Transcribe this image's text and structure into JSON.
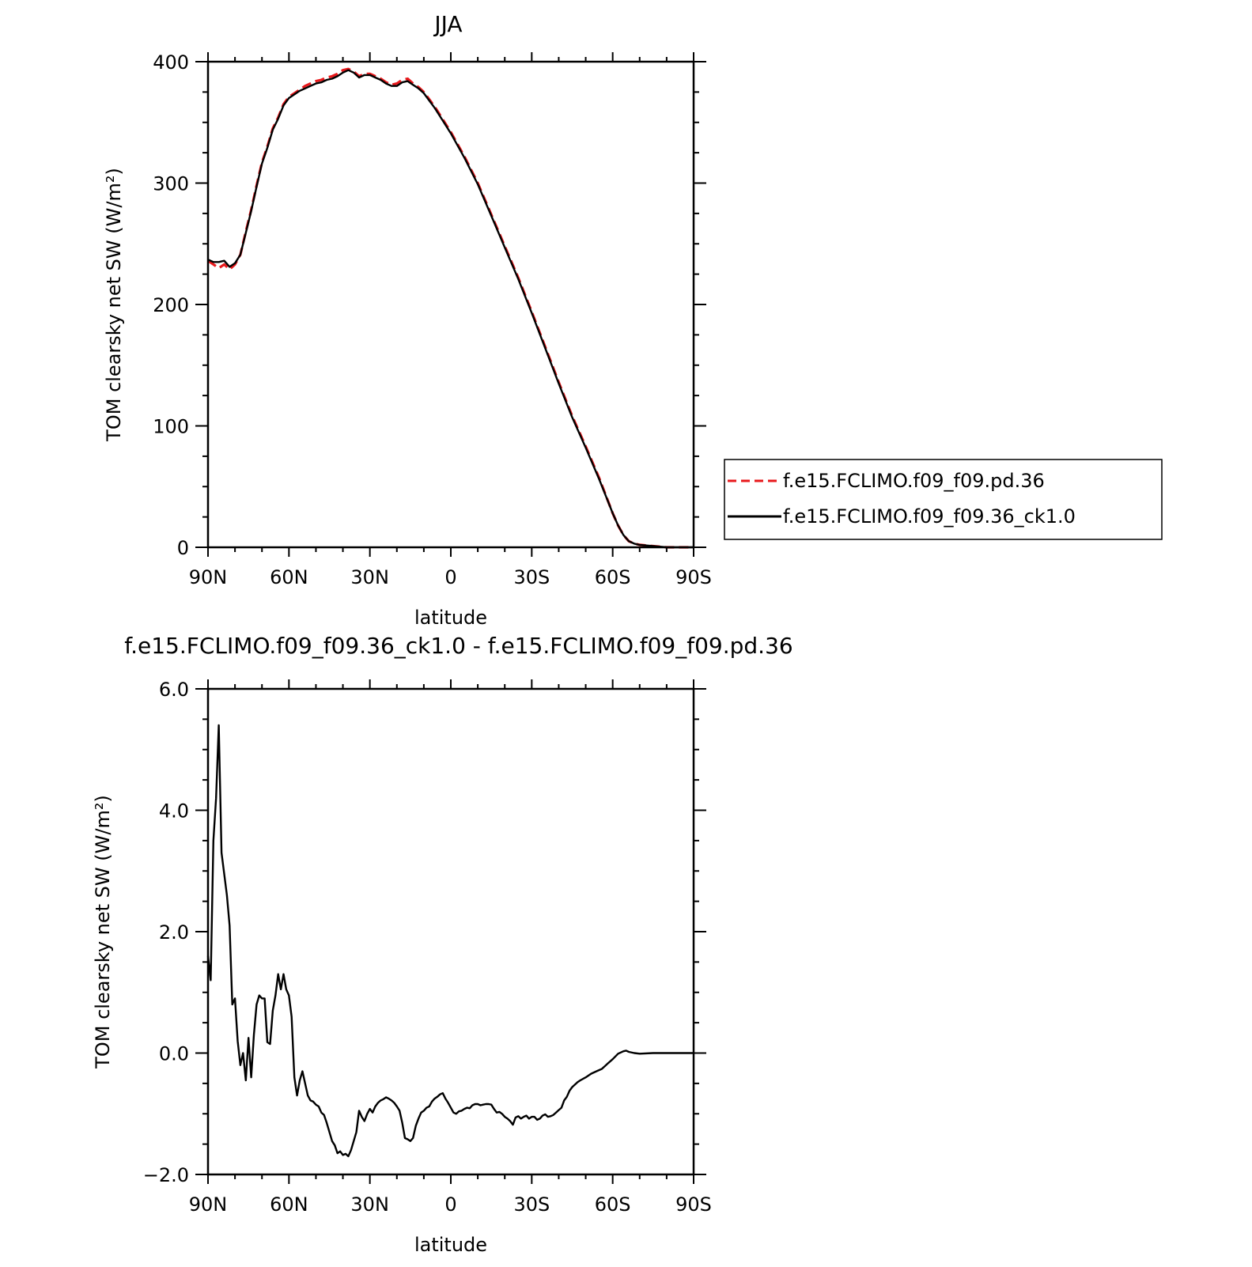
{
  "colors": {
    "series_red": "#e8191c",
    "series_black": "#000000",
    "axis": "#000000",
    "background": "#ffffff"
  },
  "legend": {
    "placement": "right",
    "entries": [
      {
        "label": "f.e15.FCLIMO.f09_f09.pd.36",
        "style": "dashed",
        "color": "#e8191c"
      },
      {
        "label": "f.e15.FCLIMO.f09_f09.36_ck1.0",
        "style": "solid",
        "color": "#000000"
      }
    ]
  },
  "chart_data": [
    {
      "type": "line",
      "title": "JJA",
      "xlabel": "latitude",
      "ylabel": "TOM clearsky net SW (W/m²)",
      "xlim": [
        90,
        -90
      ],
      "ylim": [
        0,
        400
      ],
      "xticks": [
        90,
        60,
        30,
        0,
        -30,
        -60,
        -90
      ],
      "xtick_labels": [
        "90N",
        "60N",
        "30N",
        "0",
        "30S",
        "60S",
        "90S"
      ],
      "yticks": [
        0,
        100,
        200,
        300,
        400
      ],
      "ytick_labels": [
        "0",
        "100",
        "200",
        "300",
        "400"
      ],
      "grid": false,
      "series": [
        {
          "name": "f.e15.FCLIMO.f09_f09.pd.36",
          "style": "dashed",
          "color": "#e8191c",
          "x": [
            90,
            88,
            86,
            84,
            82,
            80,
            78,
            76,
            74,
            72,
            70,
            68,
            66,
            64,
            62,
            60,
            58,
            56,
            54,
            52,
            50,
            48,
            46,
            44,
            42,
            40,
            38,
            36,
            34,
            32,
            30,
            28,
            26,
            24,
            22,
            20,
            18,
            16,
            14,
            12,
            10,
            8,
            6,
            4,
            2,
            0,
            -5,
            -10,
            -15,
            -20,
            -25,
            -30,
            -35,
            -40,
            -45,
            -50,
            -55,
            -60,
            -62,
            -64,
            -66,
            -68,
            -70,
            -75,
            -80,
            -85,
            -90
          ],
          "y": [
            236,
            233,
            230,
            233,
            229,
            233,
            241,
            260,
            278,
            298,
            317,
            330,
            345,
            354,
            365,
            371,
            374,
            377,
            380,
            382,
            384,
            385,
            387,
            388,
            390,
            393,
            394,
            392,
            388,
            390,
            390,
            388,
            386,
            383,
            381,
            382,
            385,
            386,
            382,
            379,
            375,
            369,
            363,
            356,
            349,
            342,
            322,
            300,
            274,
            248,
            222,
            194,
            165,
            136,
            108,
            83,
            57,
            28,
            18,
            10,
            5,
            3,
            2,
            1,
            0,
            0,
            0
          ]
        },
        {
          "name": "f.e15.FCLIMO.f09_f09.36_ck1.0",
          "style": "solid",
          "color": "#000000",
          "x": [
            90,
            88,
            86,
            84,
            82,
            80,
            78,
            76,
            74,
            72,
            70,
            68,
            66,
            64,
            62,
            60,
            58,
            56,
            54,
            52,
            50,
            48,
            46,
            44,
            42,
            40,
            38,
            36,
            34,
            32,
            30,
            28,
            26,
            24,
            22,
            20,
            18,
            16,
            14,
            12,
            10,
            8,
            6,
            4,
            2,
            0,
            -5,
            -10,
            -15,
            -20,
            -25,
            -30,
            -35,
            -40,
            -45,
            -50,
            -55,
            -60,
            -62,
            -64,
            -66,
            -68,
            -70,
            -75,
            -80,
            -85,
            -90
          ],
          "y": [
            237,
            235,
            235,
            236,
            231,
            234,
            241,
            259,
            277,
            297,
            316,
            329,
            344,
            353,
            364,
            370,
            373,
            376,
            378,
            380,
            382,
            383,
            385,
            386,
            388,
            391,
            393,
            391,
            387,
            389,
            389,
            387,
            385,
            382,
            380,
            380,
            383,
            384,
            381,
            378,
            374,
            368,
            362,
            355,
            348,
            341,
            321,
            299,
            273,
            247,
            221,
            193,
            164,
            135,
            107,
            82,
            56,
            28,
            18,
            10,
            5,
            3,
            2,
            1,
            0,
            0,
            0
          ]
        }
      ]
    },
    {
      "type": "line",
      "title": "f.e15.FCLIMO.f09_f09.36_ck1.0 - f.e15.FCLIMO.f09_f09.pd.36",
      "xlabel": "latitude",
      "ylabel": "TOM clearsky net SW (W/m²)",
      "xlim": [
        90,
        -90
      ],
      "ylim": [
        -2.0,
        6.0
      ],
      "xticks": [
        90,
        60,
        30,
        0,
        -30,
        -60,
        -90
      ],
      "xtick_labels": [
        "90N",
        "60N",
        "30N",
        "0",
        "30S",
        "60S",
        "90S"
      ],
      "yticks": [
        -2.0,
        0.0,
        2.0,
        4.0,
        6.0
      ],
      "ytick_labels": [
        "−2.0",
        "0.0",
        "2.0",
        "4.0",
        "6.0"
      ],
      "grid": false,
      "series": [
        {
          "style": "solid",
          "color": "#000000",
          "x": [
            90,
            89,
            88,
            87,
            86,
            85,
            83,
            82,
            81,
            80,
            79,
            78,
            77,
            76,
            75,
            74,
            73,
            72,
            71,
            70,
            69,
            68,
            67,
            66,
            65,
            64,
            63,
            62,
            61,
            60,
            59,
            58,
            57,
            56,
            55,
            53,
            52,
            51,
            50,
            49,
            48,
            47,
            46,
            45,
            44,
            43,
            42,
            41,
            40,
            39,
            38,
            37,
            36,
            35,
            34,
            33,
            32,
            31,
            30,
            29,
            28,
            27,
            26,
            25,
            24,
            23,
            22,
            21,
            20,
            19,
            18,
            17,
            16,
            15,
            14,
            13,
            12,
            11,
            10,
            9,
            8,
            7,
            6,
            5,
            4,
            3,
            2,
            1,
            0,
            -1,
            -2,
            -3,
            -4,
            -5,
            -6,
            -7,
            -8,
            -9,
            -10,
            -11,
            -12,
            -13,
            -14,
            -15,
            -16,
            -17,
            -18,
            -19,
            -20,
            -21,
            -22,
            -23,
            -24,
            -25,
            -26,
            -27,
            -28,
            -29,
            -30,
            -31,
            -32,
            -33,
            -34,
            -35,
            -36,
            -37,
            -38,
            -39,
            -40,
            -41,
            -42,
            -43,
            -44,
            -45,
            -46,
            -47,
            -48,
            -50,
            -52,
            -54,
            -56,
            -58,
            -60,
            -62,
            -64,
            -65,
            -66,
            -68,
            -70,
            -75,
            -80,
            -85,
            -90
          ],
          "y": [
            1.6,
            1.2,
            3.5,
            4.2,
            5.4,
            3.3,
            2.6,
            2.1,
            0.8,
            0.9,
            0.2,
            -0.2,
            0.0,
            -0.45,
            0.25,
            -0.4,
            0.3,
            0.8,
            0.95,
            0.9,
            0.9,
            0.18,
            0.15,
            0.7,
            0.95,
            1.3,
            1.05,
            1.3,
            1.05,
            0.95,
            0.6,
            -0.4,
            -0.7,
            -0.45,
            -0.3,
            -0.7,
            -0.78,
            -0.8,
            -0.85,
            -0.88,
            -0.98,
            -1.02,
            -1.15,
            -1.3,
            -1.45,
            -1.52,
            -1.65,
            -1.62,
            -1.68,
            -1.66,
            -1.7,
            -1.6,
            -1.45,
            -1.3,
            -0.95,
            -1.05,
            -1.12,
            -1.0,
            -0.92,
            -0.98,
            -0.88,
            -0.82,
            -0.78,
            -0.76,
            -0.73,
            -0.75,
            -0.78,
            -0.82,
            -0.88,
            -0.95,
            -1.15,
            -1.4,
            -1.42,
            -1.45,
            -1.4,
            -1.2,
            -1.08,
            -0.98,
            -0.95,
            -0.9,
            -0.88,
            -0.8,
            -0.75,
            -0.72,
            -0.68,
            -0.66,
            -0.75,
            -0.82,
            -0.9,
            -0.98,
            -1.0,
            -0.96,
            -0.95,
            -0.92,
            -0.9,
            -0.91,
            -0.86,
            -0.84,
            -0.84,
            -0.86,
            -0.85,
            -0.84,
            -0.84,
            -0.85,
            -0.92,
            -0.98,
            -0.97,
            -1.0,
            -1.05,
            -1.08,
            -1.12,
            -1.18,
            -1.06,
            -1.04,
            -1.08,
            -1.05,
            -1.03,
            -1.08,
            -1.05,
            -1.05,
            -1.1,
            -1.08,
            -1.03,
            -1.01,
            -1.05,
            -1.04,
            -1.02,
            -0.98,
            -0.94,
            -0.9,
            -0.78,
            -0.72,
            -0.62,
            -0.56,
            -0.52,
            -0.48,
            -0.45,
            -0.4,
            -0.34,
            -0.3,
            -0.26,
            -0.18,
            -0.1,
            -0.01,
            0.03,
            0.04,
            0.02,
            0.0,
            -0.01,
            0.0,
            0.0,
            0.0,
            0.0
          ]
        }
      ]
    }
  ]
}
